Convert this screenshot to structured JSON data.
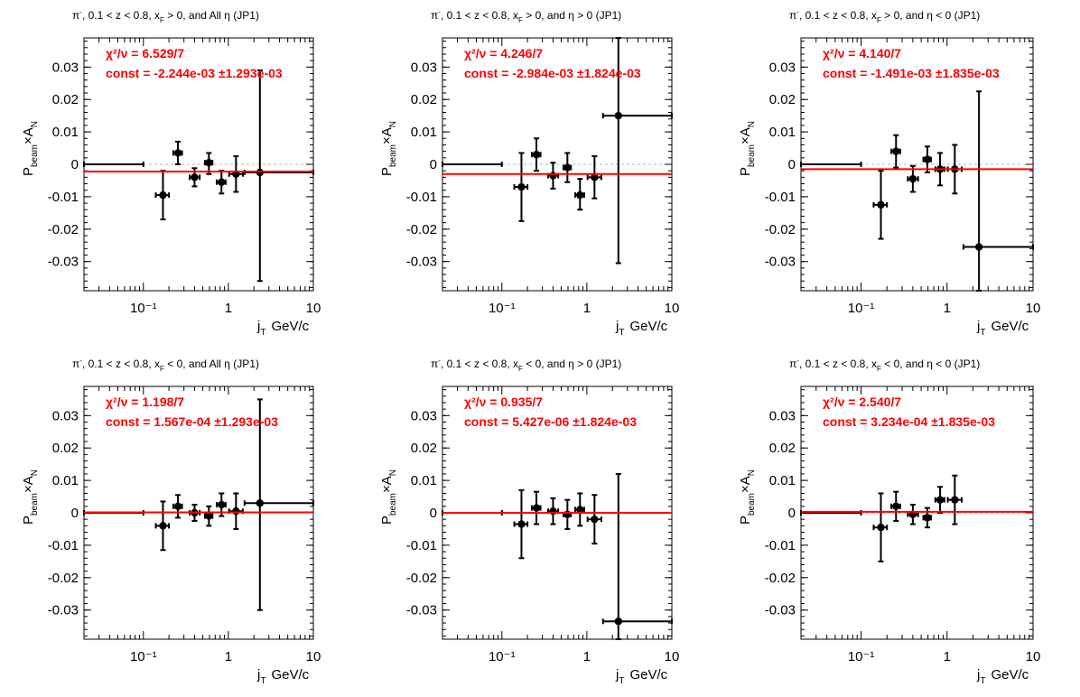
{
  "chart_data": [
    {
      "type": "scatter",
      "title": "π⁻, 0.1 < z < 0.8, x_F > 0, and All η (JP1)",
      "title_parts": [
        "π",
        "-",
        ", 0.1 < z < 0.8, x",
        "F",
        " > 0, and All η (JP1)"
      ],
      "xlabel": "j",
      "xlabel_sub": "T",
      "xlabel_unit": "GeV/c",
      "ylabel": "P",
      "ylabel_sub": "beam",
      "ylabel_mid": "×A",
      "ylabel_sub2": "N",
      "xscale": "log",
      "xlim": [
        0.02,
        10
      ],
      "ylim": [
        -0.039,
        0.039
      ],
      "x_ticks": [
        "10⁻¹",
        "1",
        "10"
      ],
      "y_ticks": [
        0.03,
        0.02,
        0.01,
        0,
        -0.01,
        -0.02,
        -0.03
      ],
      "chi2": "χ²/ν = 6.529/7",
      "const": "const = -2.244e-03  ±1.293e-03",
      "fit_value": -0.002244,
      "points": [
        {
          "x": 0.06,
          "xlo": 0.02,
          "xhi": 0.1,
          "y": 0.0,
          "ylo": 0.0,
          "yhi": 0.0,
          "marker": false
        },
        {
          "x": 0.17,
          "xlo": 0.14,
          "xhi": 0.2,
          "y": -0.0095,
          "ylo": -0.017,
          "yhi": -0.002,
          "marker": true
        },
        {
          "x": 0.255,
          "xlo": 0.225,
          "xhi": 0.285,
          "y": 0.0035,
          "ylo": 0.0,
          "yhi": 0.007,
          "marker": true
        },
        {
          "x": 0.4,
          "xlo": 0.35,
          "xhi": 0.46,
          "y": -0.004,
          "ylo": -0.0068,
          "yhi": -0.0012,
          "marker": true
        },
        {
          "x": 0.59,
          "xlo": 0.53,
          "xhi": 0.65,
          "y": 0.0005,
          "ylo": -0.003,
          "yhi": 0.0035,
          "marker": true
        },
        {
          "x": 0.83,
          "xlo": 0.73,
          "xhi": 0.93,
          "y": -0.0055,
          "ylo": -0.009,
          "yhi": -0.002,
          "marker": true
        },
        {
          "x": 1.23,
          "xlo": 1.02,
          "xhi": 1.48,
          "y": -0.003,
          "ylo": -0.0085,
          "yhi": 0.0025,
          "marker": true
        },
        {
          "x": 2.35,
          "xlo": 1.55,
          "xhi": 10.0,
          "y": -0.0025,
          "ylo": -0.036,
          "yhi": 0.029,
          "marker": true
        }
      ]
    },
    {
      "type": "scatter",
      "title": "π⁻, 0.1 < z < 0.8, x_F > 0, and η > 0 (JP1)",
      "title_parts": [
        "π",
        "-",
        ", 0.1 < z < 0.8, x",
        "F",
        " > 0, and  η > 0 (JP1)"
      ],
      "xlabel": "j",
      "xlabel_sub": "T",
      "xlabel_unit": "GeV/c",
      "ylabel": "P",
      "ylabel_sub": "beam",
      "ylabel_mid": "×A",
      "ylabel_sub2": "N",
      "xscale": "log",
      "xlim": [
        0.02,
        10
      ],
      "ylim": [
        -0.039,
        0.039
      ],
      "x_ticks": [
        "10⁻¹",
        "1",
        "10"
      ],
      "y_ticks": [
        0.03,
        0.02,
        0.01,
        0,
        -0.01,
        -0.02,
        -0.03
      ],
      "chi2": "χ²/ν = 4.246/7",
      "const": "const = -2.984e-03  ±1.824e-03",
      "fit_value": -0.002984,
      "points": [
        {
          "x": 0.06,
          "xlo": 0.02,
          "xhi": 0.1,
          "y": 0.0,
          "ylo": 0.0,
          "yhi": 0.0,
          "marker": false
        },
        {
          "x": 0.17,
          "xlo": 0.14,
          "xhi": 0.2,
          "y": -0.007,
          "ylo": -0.0175,
          "yhi": 0.0035,
          "marker": true
        },
        {
          "x": 0.255,
          "xlo": 0.225,
          "xhi": 0.285,
          "y": 0.003,
          "ylo": -0.002,
          "yhi": 0.008,
          "marker": true
        },
        {
          "x": 0.4,
          "xlo": 0.35,
          "xhi": 0.46,
          "y": -0.0035,
          "ylo": -0.0075,
          "yhi": 0.0005,
          "marker": true
        },
        {
          "x": 0.59,
          "xlo": 0.53,
          "xhi": 0.65,
          "y": -0.001,
          "ylo": -0.0055,
          "yhi": 0.0035,
          "marker": true
        },
        {
          "x": 0.83,
          "xlo": 0.73,
          "xhi": 0.93,
          "y": -0.0095,
          "ylo": -0.014,
          "yhi": -0.0045,
          "marker": true
        },
        {
          "x": 1.23,
          "xlo": 1.02,
          "xhi": 1.48,
          "y": -0.004,
          "ylo": -0.0105,
          "yhi": 0.0025,
          "marker": true
        },
        {
          "x": 2.35,
          "xlo": 1.55,
          "xhi": 10.0,
          "y": 0.015,
          "ylo": -0.0305,
          "yhi": 0.039,
          "marker": true
        }
      ]
    },
    {
      "type": "scatter",
      "title": "π⁻, 0.1 < z < 0.8, x_F > 0, and η < 0 (JP1)",
      "title_parts": [
        "π",
        "-",
        ", 0.1 < z < 0.8, x",
        "F",
        " > 0, and  η < 0 (JP1)"
      ],
      "xlabel": "j",
      "xlabel_sub": "T",
      "xlabel_unit": "GeV/c",
      "ylabel": "P",
      "ylabel_sub": "beam",
      "ylabel_mid": "×A",
      "ylabel_sub2": "N",
      "xscale": "log",
      "xlim": [
        0.02,
        10
      ],
      "ylim": [
        -0.039,
        0.039
      ],
      "x_ticks": [
        "10⁻¹",
        "1",
        "10"
      ],
      "y_ticks": [
        0.03,
        0.02,
        0.01,
        0,
        -0.01,
        -0.02,
        -0.03
      ],
      "chi2": "χ²/ν = 4.140/7",
      "const": "const = -1.491e-03  ±1.835e-03",
      "fit_value": -0.001491,
      "points": [
        {
          "x": 0.06,
          "xlo": 0.02,
          "xhi": 0.1,
          "y": 0.0,
          "ylo": 0.0,
          "yhi": 0.0,
          "marker": false
        },
        {
          "x": 0.17,
          "xlo": 0.14,
          "xhi": 0.2,
          "y": -0.0125,
          "ylo": -0.023,
          "yhi": -0.002,
          "marker": true
        },
        {
          "x": 0.255,
          "xlo": 0.225,
          "xhi": 0.285,
          "y": 0.004,
          "ylo": -0.001,
          "yhi": 0.009,
          "marker": true
        },
        {
          "x": 0.4,
          "xlo": 0.35,
          "xhi": 0.46,
          "y": -0.0045,
          "ylo": -0.0085,
          "yhi": -0.0005,
          "marker": true
        },
        {
          "x": 0.59,
          "xlo": 0.53,
          "xhi": 0.65,
          "y": 0.0015,
          "ylo": -0.0025,
          "yhi": 0.0055,
          "marker": true
        },
        {
          "x": 0.83,
          "xlo": 0.73,
          "xhi": 0.93,
          "y": -0.0015,
          "ylo": -0.0065,
          "yhi": 0.0035,
          "marker": true
        },
        {
          "x": 1.23,
          "xlo": 1.02,
          "xhi": 1.48,
          "y": -0.0015,
          "ylo": -0.009,
          "yhi": 0.006,
          "marker": true
        },
        {
          "x": 2.35,
          "xlo": 1.55,
          "xhi": 10.0,
          "y": -0.0255,
          "ylo": -0.039,
          "yhi": 0.0225,
          "marker": true
        }
      ]
    },
    {
      "type": "scatter",
      "title": "π⁻, 0.1 < z < 0.8, x_F < 0, and All η (JP1)",
      "title_parts": [
        "π",
        "-",
        ", 0.1 < z < 0.8, x",
        "F",
        " < 0, and All η (JP1)"
      ],
      "xlabel": "j",
      "xlabel_sub": "T",
      "xlabel_unit": "GeV/c",
      "ylabel": "P",
      "ylabel_sub": "beam",
      "ylabel_mid": "×A",
      "ylabel_sub2": "N",
      "xscale": "log",
      "xlim": [
        0.02,
        10
      ],
      "ylim": [
        -0.039,
        0.039
      ],
      "x_ticks": [
        "10⁻¹",
        "1",
        "10"
      ],
      "y_ticks": [
        0.03,
        0.02,
        0.01,
        0,
        -0.01,
        -0.02,
        -0.03
      ],
      "chi2": "χ²/ν = 1.198/7",
      "const": "const = 1.567e-04  ±1.293e-03",
      "fit_value": 0.0001567,
      "points": [
        {
          "x": 0.06,
          "xlo": 0.02,
          "xhi": 0.1,
          "y": 0.0,
          "ylo": 0.0,
          "yhi": 0.0,
          "marker": false
        },
        {
          "x": 0.17,
          "xlo": 0.14,
          "xhi": 0.2,
          "y": -0.004,
          "ylo": -0.0115,
          "yhi": 0.0035,
          "marker": true
        },
        {
          "x": 0.255,
          "xlo": 0.225,
          "xhi": 0.285,
          "y": 0.002,
          "ylo": -0.0015,
          "yhi": 0.0055,
          "marker": true
        },
        {
          "x": 0.4,
          "xlo": 0.35,
          "xhi": 0.46,
          "y": 0.0,
          "ylo": -0.0025,
          "yhi": 0.0025,
          "marker": true
        },
        {
          "x": 0.59,
          "xlo": 0.53,
          "xhi": 0.65,
          "y": -0.001,
          "ylo": -0.004,
          "yhi": 0.002,
          "marker": true
        },
        {
          "x": 0.83,
          "xlo": 0.73,
          "xhi": 0.93,
          "y": 0.0025,
          "ylo": -0.001,
          "yhi": 0.006,
          "marker": true
        },
        {
          "x": 1.23,
          "xlo": 1.02,
          "xhi": 1.48,
          "y": 0.0005,
          "ylo": -0.005,
          "yhi": 0.006,
          "marker": true
        },
        {
          "x": 2.35,
          "xlo": 1.55,
          "xhi": 10.0,
          "y": 0.003,
          "ylo": -0.03,
          "yhi": 0.035,
          "marker": true
        }
      ]
    },
    {
      "type": "scatter",
      "title": "π⁻, 0.1 < z < 0.8, x_F < 0, and η > 0 (JP1)",
      "title_parts": [
        "π",
        "-",
        ", 0.1 < z < 0.8, x",
        "F",
        " < 0, and  η > 0 (JP1)"
      ],
      "xlabel": "j",
      "xlabel_sub": "T",
      "xlabel_unit": "GeV/c",
      "ylabel": "P",
      "ylabel_sub": "beam",
      "ylabel_mid": "×A",
      "ylabel_sub2": "N",
      "xscale": "log",
      "xlim": [
        0.02,
        10
      ],
      "ylim": [
        -0.039,
        0.039
      ],
      "x_ticks": [
        "10⁻¹",
        "1",
        "10"
      ],
      "y_ticks": [
        0.03,
        0.02,
        0.01,
        0,
        -0.01,
        -0.02,
        -0.03
      ],
      "chi2": "χ²/ν = 0.935/7",
      "const": "const = 5.427e-06  ±1.824e-03",
      "fit_value": 5.427e-06,
      "points": [
        {
          "x": 0.06,
          "xlo": 0.02,
          "xhi": 0.1,
          "y": 0.0,
          "ylo": 0.0,
          "yhi": 0.0,
          "marker": false
        },
        {
          "x": 0.17,
          "xlo": 0.14,
          "xhi": 0.2,
          "y": -0.0035,
          "ylo": -0.014,
          "yhi": 0.007,
          "marker": true
        },
        {
          "x": 0.255,
          "xlo": 0.225,
          "xhi": 0.285,
          "y": 0.0015,
          "ylo": -0.0035,
          "yhi": 0.0065,
          "marker": true
        },
        {
          "x": 0.4,
          "xlo": 0.35,
          "xhi": 0.46,
          "y": 0.0005,
          "ylo": -0.0035,
          "yhi": 0.0045,
          "marker": true
        },
        {
          "x": 0.59,
          "xlo": 0.53,
          "xhi": 0.65,
          "y": -0.0005,
          "ylo": -0.005,
          "yhi": 0.004,
          "marker": true
        },
        {
          "x": 0.83,
          "xlo": 0.73,
          "xhi": 0.93,
          "y": 0.001,
          "ylo": -0.004,
          "yhi": 0.006,
          "marker": true
        },
        {
          "x": 1.23,
          "xlo": 1.02,
          "xhi": 1.48,
          "y": -0.002,
          "ylo": -0.0095,
          "yhi": 0.0055,
          "marker": true
        },
        {
          "x": 2.35,
          "xlo": 1.55,
          "xhi": 10.0,
          "y": -0.0335,
          "ylo": -0.039,
          "yhi": 0.012,
          "marker": true
        }
      ]
    },
    {
      "type": "scatter",
      "title": "π⁻, 0.1 < z < 0.8, x_F < 0, and η < 0 (JP1)",
      "title_parts": [
        "π",
        "-",
        ", 0.1 < z < 0.8, x",
        "F",
        " < 0, and  η < 0 (JP1)"
      ],
      "xlabel": "j",
      "xlabel_sub": "T",
      "xlabel_unit": "GeV/c",
      "ylabel": "P",
      "ylabel_sub": "beam",
      "ylabel_mid": "×A",
      "ylabel_sub2": "N",
      "xscale": "log",
      "xlim": [
        0.02,
        10
      ],
      "ylim": [
        -0.039,
        0.039
      ],
      "x_ticks": [
        "10⁻¹",
        "1",
        "10"
      ],
      "y_ticks": [
        0.03,
        0.02,
        0.01,
        0,
        -0.01,
        -0.02,
        -0.03
      ],
      "chi2": "χ²/ν = 2.540/7",
      "const": "const = 3.234e-04  ±1.835e-03",
      "fit_value": 0.0003234,
      "points": [
        {
          "x": 0.06,
          "xlo": 0.02,
          "xhi": 0.1,
          "y": 0.0,
          "ylo": 0.0,
          "yhi": 0.0,
          "marker": false
        },
        {
          "x": 0.17,
          "xlo": 0.14,
          "xhi": 0.2,
          "y": -0.0045,
          "ylo": -0.015,
          "yhi": 0.006,
          "marker": true
        },
        {
          "x": 0.255,
          "xlo": 0.225,
          "xhi": 0.285,
          "y": 0.002,
          "ylo": -0.0025,
          "yhi": 0.0065,
          "marker": true
        },
        {
          "x": 0.4,
          "xlo": 0.35,
          "xhi": 0.46,
          "y": -0.0005,
          "ylo": -0.0035,
          "yhi": 0.0025,
          "marker": true
        },
        {
          "x": 0.59,
          "xlo": 0.53,
          "xhi": 0.65,
          "y": -0.0015,
          "ylo": -0.0045,
          "yhi": 0.0015,
          "marker": true
        },
        {
          "x": 0.83,
          "xlo": 0.73,
          "xhi": 0.93,
          "y": 0.004,
          "ylo": 0.0,
          "yhi": 0.008,
          "marker": true
        },
        {
          "x": 1.23,
          "xlo": 1.02,
          "xhi": 1.48,
          "y": 0.004,
          "ylo": -0.0035,
          "yhi": 0.0115,
          "marker": true
        }
      ]
    }
  ]
}
